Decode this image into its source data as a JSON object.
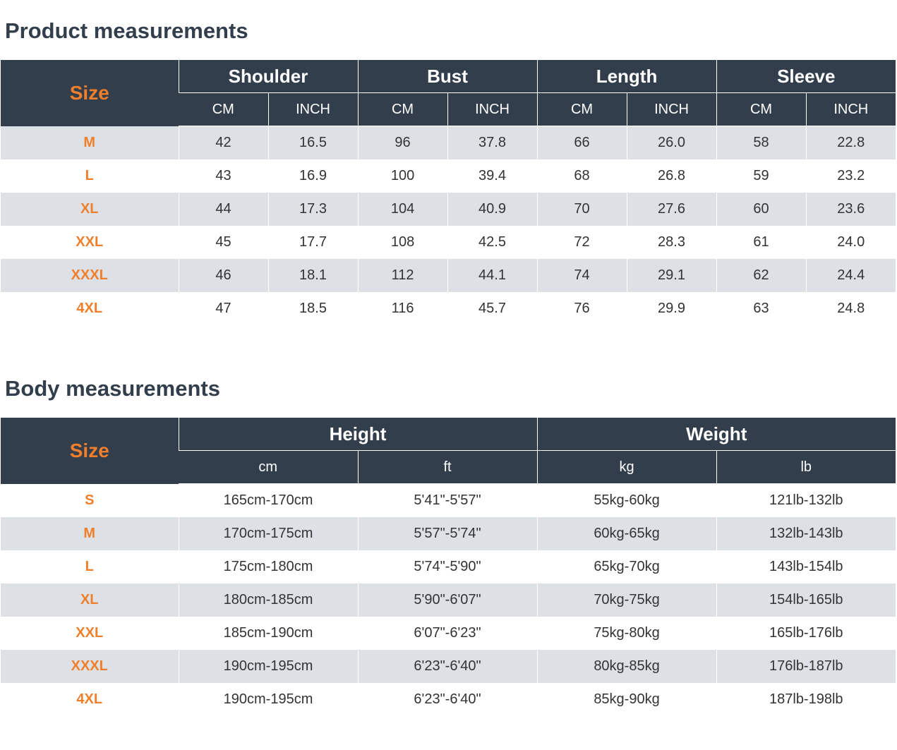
{
  "product": {
    "title": "Product measurements",
    "size_label": "Size",
    "groups": [
      "Shoulder",
      "Bust",
      "Length",
      "Sleeve"
    ],
    "units": [
      "CM",
      "INCH",
      "CM",
      "INCH",
      "CM",
      "INCH",
      "CM",
      "INCH"
    ],
    "rows": [
      [
        "M",
        "42",
        "16.5",
        "96",
        "37.8",
        "66",
        "26.0",
        "58",
        "22.8"
      ],
      [
        "L",
        "43",
        "16.9",
        "100",
        "39.4",
        "68",
        "26.8",
        "59",
        "23.2"
      ],
      [
        "XL",
        "44",
        "17.3",
        "104",
        "40.9",
        "70",
        "27.6",
        "60",
        "23.6"
      ],
      [
        "XXL",
        "45",
        "17.7",
        "108",
        "42.5",
        "72",
        "28.3",
        "61",
        "24.0"
      ],
      [
        "XXXL",
        "46",
        "18.1",
        "112",
        "44.1",
        "74",
        "29.1",
        "62",
        "24.4"
      ],
      [
        "4XL",
        "47",
        "18.5",
        "116",
        "45.7",
        "76",
        "29.9",
        "63",
        "24.8"
      ]
    ]
  },
  "body": {
    "title": "Body measurements",
    "size_label": "Size",
    "groups": [
      "Height",
      "Weight"
    ],
    "units": [
      "cm",
      "ft",
      "kg",
      "lb"
    ],
    "rows": [
      [
        "S",
        "165cm-170cm",
        "5'41\"-5'57\"",
        "55kg-60kg",
        "121lb-132lb"
      ],
      [
        "M",
        "170cm-175cm",
        "5'57\"-5'74\"",
        "60kg-65kg",
        "132lb-143lb"
      ],
      [
        "L",
        "175cm-180cm",
        "5'74\"-5'90\"",
        "65kg-70kg",
        "143lb-154lb"
      ],
      [
        "XL",
        "180cm-185cm",
        "5'90\"-6'07\"",
        "70kg-75kg",
        "154lb-165lb"
      ],
      [
        "XXL",
        "185cm-190cm",
        "6'07\"-6'23\"",
        "75kg-80kg",
        "165lb-176lb"
      ],
      [
        "XXXL",
        "190cm-195cm",
        "6'23\"-6'40\"",
        "80kg-85kg",
        "176lb-187lb"
      ],
      [
        "4XL",
        "190cm-195cm",
        "6'23\"-6'40\"",
        "85kg-90kg",
        "187lb-198lb"
      ]
    ]
  },
  "colors": {
    "header_bg": "#323e4c",
    "size_accent": "#f07f2b",
    "stripe": "#dde1e6"
  }
}
